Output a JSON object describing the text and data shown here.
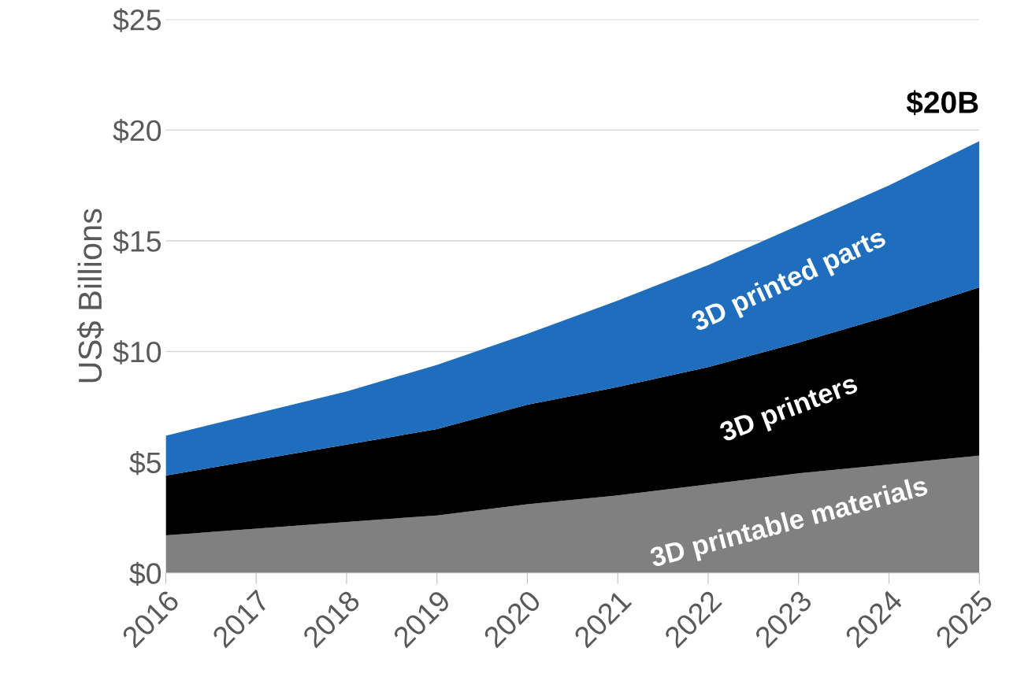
{
  "chart_data": {
    "type": "area",
    "stacked": true,
    "ylabel": "US$ Billions",
    "categories": [
      "2016",
      "2017",
      "2018",
      "2019",
      "2020",
      "2021",
      "2022",
      "2023",
      "2024",
      "2025"
    ],
    "series": [
      {
        "name": "3D printable materials",
        "color": "#808080",
        "values": [
          1.7,
          2.0,
          2.3,
          2.6,
          3.1,
          3.5,
          4.0,
          4.5,
          4.9,
          5.3
        ]
      },
      {
        "name": "3D printers",
        "color": "#000000",
        "values": [
          2.7,
          3.1,
          3.5,
          3.9,
          4.5,
          4.9,
          5.3,
          5.9,
          6.7,
          7.6
        ]
      },
      {
        "name": "3D printed parts",
        "color": "#1f6ebd",
        "values": [
          1.8,
          2.1,
          2.4,
          2.9,
          3.2,
          3.9,
          4.6,
          5.3,
          5.9,
          6.6
        ]
      }
    ],
    "ylim": [
      0,
      25
    ],
    "yticks": [
      {
        "value": 0,
        "label": "$0"
      },
      {
        "value": 5,
        "label": "$5"
      },
      {
        "value": 10,
        "label": "$10"
      },
      {
        "value": 15,
        "label": "$15"
      },
      {
        "value": 20,
        "label": "$20"
      },
      {
        "value": 25,
        "label": "$25"
      }
    ],
    "grid": "y",
    "legend": false,
    "annotations": [
      {
        "text": "$20B",
        "x": "2025",
        "y": 19.5
      }
    ]
  }
}
